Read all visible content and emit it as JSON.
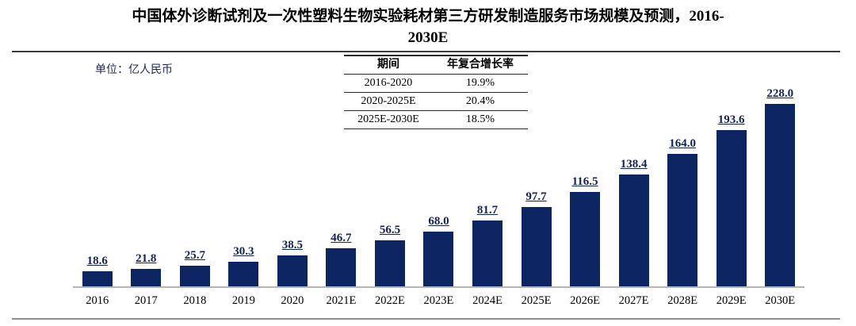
{
  "title": {
    "line1": "中国体外诊断试剂及一次性塑料生物实验耗材第三方研发制造服务市场规模及预测，2016-",
    "line2": "2030E"
  },
  "unit_label": "单位：亿人民币",
  "cagr_table": {
    "headers": [
      "期间",
      "年复合增长率"
    ],
    "rows": [
      {
        "period": "2016-2020",
        "cagr": "19.9%"
      },
      {
        "period": "2020-2025E",
        "cagr": "20.4%"
      },
      {
        "period": "2025E-2030E",
        "cagr": "18.5%"
      }
    ]
  },
  "chart_data": {
    "type": "bar",
    "title": "中国体外诊断试剂及一次性塑料生物实验耗材第三方研发制造服务市场规模及预测，2016-2030E",
    "unit": "亿人民币",
    "categories": [
      "2016",
      "2017",
      "2018",
      "2019",
      "2020",
      "2021E",
      "2022E",
      "2023E",
      "2024E",
      "2025E",
      "2026E",
      "2027E",
      "2028E",
      "2029E",
      "2030E"
    ],
    "values": [
      18.6,
      21.8,
      25.7,
      30.3,
      38.5,
      46.7,
      56.5,
      68.0,
      81.7,
      97.7,
      116.5,
      138.4,
      164.0,
      193.6,
      228.0
    ],
    "value_labels": [
      "18.6",
      "21.8",
      "25.7",
      "30.3",
      "38.5",
      "46.7",
      "56.5",
      "68.0",
      "81.7",
      "97.7",
      "116.5",
      "138.4",
      "164.0",
      "193.6",
      "228.0"
    ],
    "xlabel": "",
    "ylabel": "",
    "ylim": [
      0,
      245
    ],
    "grid": false,
    "legend": "none",
    "value_label_style": "bold underlined above each bar",
    "bar_color": "#0e2563",
    "value_label_color": "#13235a",
    "axis_line_color": "#b5b5b5"
  },
  "colors": {
    "bar": "#0e2563",
    "value_label": "#13235a",
    "unit_label": "#1f2a5e",
    "title_text": "#000000",
    "top_rule": "#3d3d3d",
    "bottom_rule": "#8f8f8f",
    "axis_line": "#b5b5b5"
  }
}
